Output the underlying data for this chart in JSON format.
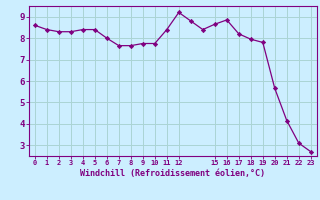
{
  "x": [
    0,
    1,
    2,
    3,
    4,
    5,
    6,
    7,
    8,
    9,
    10,
    11,
    12,
    13,
    14,
    15,
    16,
    17,
    18,
    19,
    20,
    21,
    22,
    23
  ],
  "y": [
    8.6,
    8.4,
    8.3,
    8.3,
    8.4,
    8.4,
    8.0,
    7.65,
    7.65,
    7.75,
    7.75,
    8.4,
    9.2,
    8.8,
    8.4,
    8.65,
    8.85,
    8.2,
    7.95,
    7.8,
    5.65,
    4.15,
    3.1,
    2.7
  ],
  "line_color": "#800080",
  "marker": "D",
  "marker_size": 2.2,
  "bg_color": "#cceeff",
  "grid_color": "#aad4d4",
  "xlabel": "Windchill (Refroidissement éolien,°C)",
  "xlabel_color": "#800080",
  "tick_color": "#800080",
  "axis_color": "#800080",
  "ylim": [
    2.5,
    9.5
  ],
  "xlim": [
    -0.5,
    23.5
  ],
  "yticks": [
    3,
    4,
    5,
    6,
    7,
    8,
    9
  ],
  "xticks": [
    0,
    1,
    2,
    3,
    4,
    5,
    6,
    7,
    8,
    9,
    10,
    11,
    12,
    15,
    16,
    17,
    18,
    19,
    20,
    21,
    22,
    23
  ],
  "xtick_labels": [
    "0",
    "1",
    "2",
    "3",
    "4",
    "5",
    "6",
    "7",
    "8",
    "9",
    "10",
    "11",
    "12",
    "15",
    "16",
    "17",
    "18",
    "19",
    "20",
    "21",
    "22",
    "23"
  ]
}
